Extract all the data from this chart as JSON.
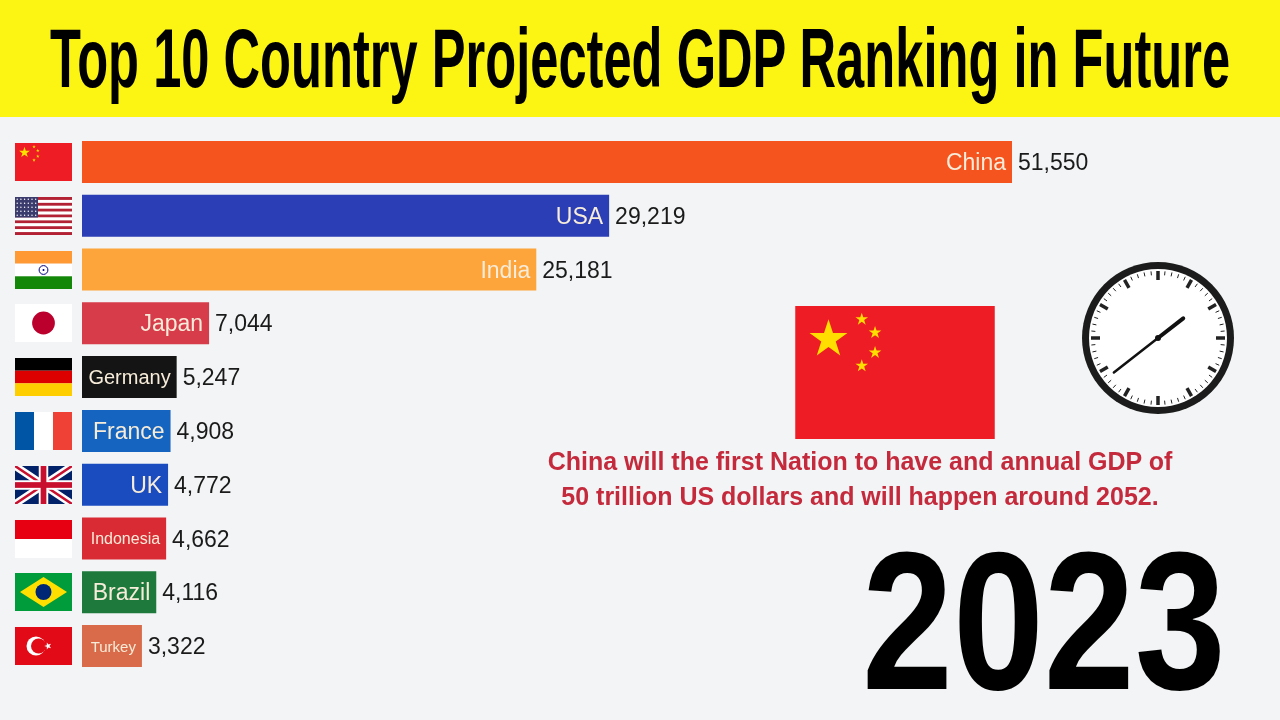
{
  "chart_data": {
    "type": "bar",
    "orientation": "horizontal",
    "title": "Top 10 Country Projected GDP Ranking in Future",
    "categories": [
      "China",
      "USA",
      "India",
      "Japan",
      "Germany",
      "France",
      "UK",
      "Indonesia",
      "Brazil",
      "Turkey"
    ],
    "values": [
      51550,
      29219,
      25181,
      7044,
      5247,
      4908,
      4772,
      4662,
      4116,
      3322
    ],
    "value_labels": [
      "51,550",
      "29,219",
      "25,181",
      "7,044",
      "5,247",
      "4,908",
      "4,772",
      "4,662",
      "4,116",
      "3,322"
    ],
    "colors": [
      "#f5541f",
      "#2b3eb5",
      "#fda43a",
      "#d63c4a",
      "#141414",
      "#1565c0",
      "#1a4cc0",
      "#d92b34",
      "#1e7a3c",
      "#d96b4a"
    ],
    "annotations": [
      "China will the first Nation to have and annual GDP of 50 trillion US dollars and will happen around 2052.",
      "2023"
    ]
  }
}
